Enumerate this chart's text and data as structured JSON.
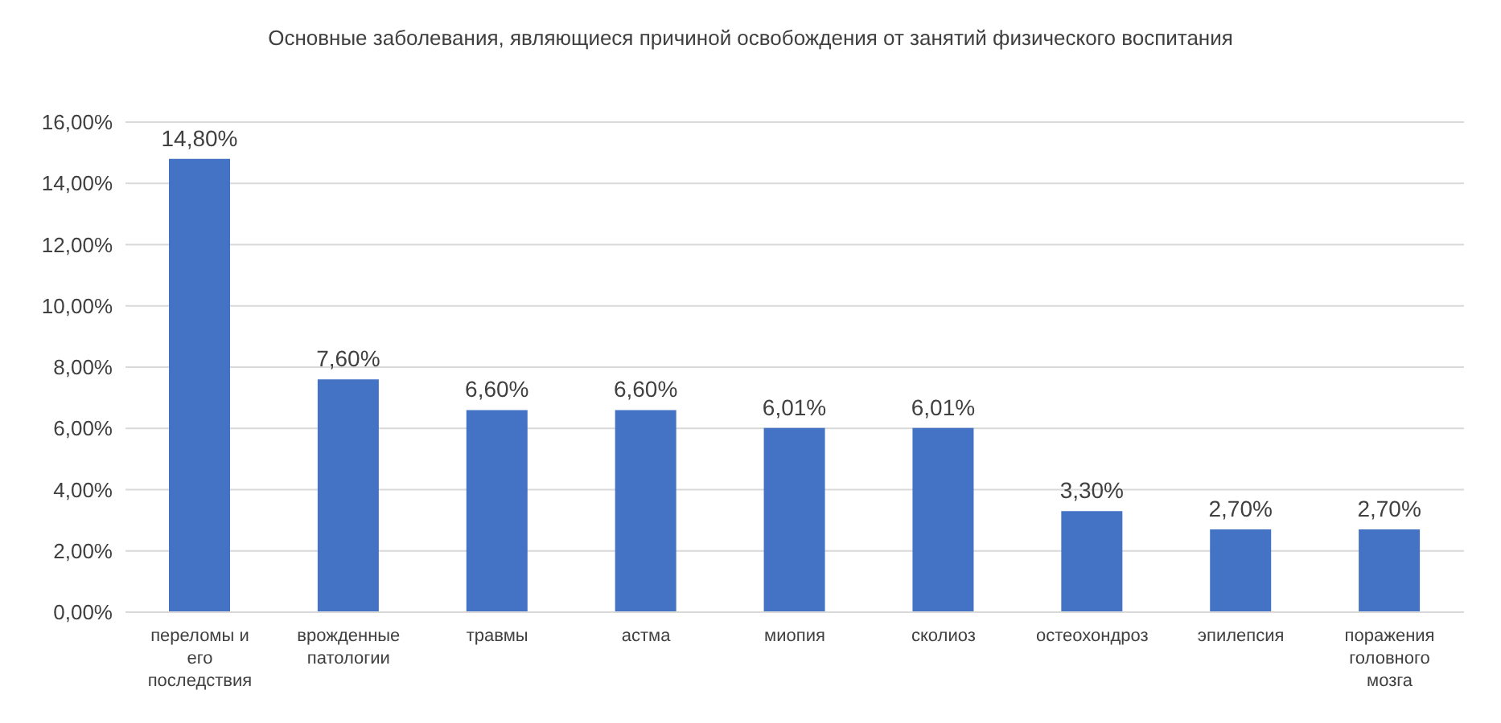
{
  "chart_data": {
    "type": "bar",
    "title": "Основные заболевания, являющиеся причиной освобождения от занятий физического воспитания",
    "categories": [
      "переломы и его последствия",
      "врожденные патологии",
      "травмы",
      "астма",
      "миопия",
      "сколиоз",
      "остеохондроз",
      "эпилепсия",
      "поражения головного мозга"
    ],
    "values": [
      14.8,
      7.6,
      6.6,
      6.6,
      6.01,
      6.01,
      3.3,
      2.7,
      2.7
    ],
    "value_labels": [
      "14,80%",
      "7,60%",
      "6,60%",
      "6,60%",
      "6,01%",
      "6,01%",
      "3,30%",
      "2,70%",
      "2,70%"
    ],
    "color": "#4472c4",
    "ylim": [
      0,
      16
    ],
    "yticks": [
      {
        "value": 0,
        "label": "0,00%"
      },
      {
        "value": 2,
        "label": "2,00%"
      },
      {
        "value": 4,
        "label": "4,00%"
      },
      {
        "value": 6,
        "label": "6,00%"
      },
      {
        "value": 8,
        "label": "8,00%"
      },
      {
        "value": 10,
        "label": "10,00%"
      },
      {
        "value": 12,
        "label": "12,00%"
      },
      {
        "value": 14,
        "label": "14,00%"
      },
      {
        "value": 16,
        "label": "16,00%"
      }
    ],
    "grid": "y"
  }
}
